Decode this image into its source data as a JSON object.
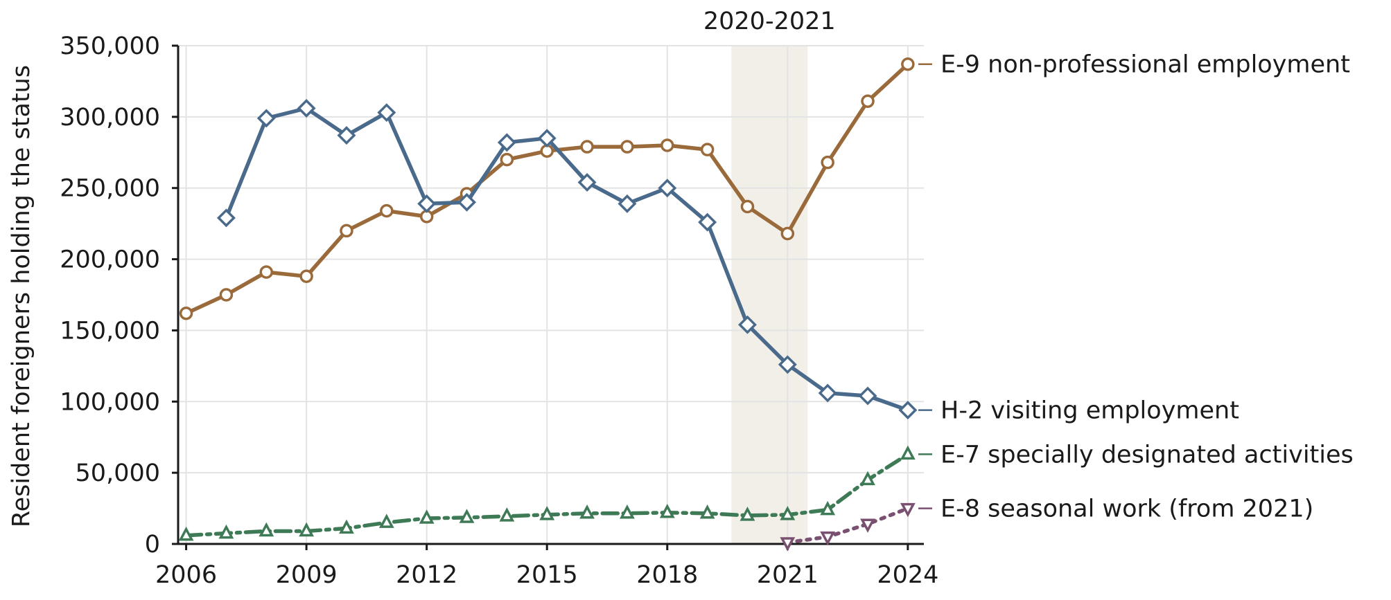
{
  "chart_data": {
    "type": "line",
    "title": "",
    "xlabel": "",
    "ylabel": "Resident foreigners holding the status",
    "xlim": [
      2005.8,
      2024.4
    ],
    "ylim": [
      0,
      350000
    ],
    "x_ticks": [
      "2006",
      "2009",
      "2012",
      "2015",
      "2018",
      "2021",
      "2024"
    ],
    "y_ticks": [
      "0",
      "50,000",
      "100,000",
      "150,000",
      "200,000",
      "250,000",
      "300,000",
      "350,000"
    ],
    "grid": true,
    "legend": "direct labels at right end of each line",
    "highlight_band": {
      "label": "2020-2021",
      "from": 2019.6,
      "to": 2021.5,
      "color": "#f2efe9"
    },
    "series": [
      {
        "name": "E-9 non-professional employment",
        "color": "#9a6a3a",
        "marker": "circle",
        "dash": "solid",
        "x": [
          2006,
          2007,
          2008,
          2009,
          2010,
          2011,
          2012,
          2013,
          2014,
          2015,
          2016,
          2017,
          2018,
          2019,
          2020,
          2021,
          2022,
          2023,
          2024
        ],
        "values": [
          162000,
          175000,
          191000,
          188000,
          220000,
          234000,
          230000,
          246000,
          270000,
          276000,
          279000,
          279000,
          280000,
          277000,
          237000,
          218000,
          268000,
          311000,
          337000
        ]
      },
      {
        "name": "H-2 visiting employment",
        "color": "#4a6a8c",
        "marker": "diamond",
        "dash": "solid",
        "x": [
          2007,
          2008,
          2009,
          2010,
          2011,
          2012,
          2013,
          2014,
          2015,
          2016,
          2017,
          2018,
          2019,
          2020,
          2021,
          2022,
          2023,
          2024
        ],
        "values": [
          229000,
          299000,
          306000,
          287000,
          303000,
          239000,
          240000,
          282000,
          285000,
          254000,
          239000,
          250000,
          226000,
          154000,
          126000,
          106000,
          104000,
          94000
        ]
      },
      {
        "name": "E-7 specially designated activities",
        "color": "#3f7a57",
        "marker": "triangle-up",
        "dash": "dashdot",
        "x": [
          2006,
          2007,
          2008,
          2009,
          2010,
          2011,
          2012,
          2013,
          2014,
          2015,
          2016,
          2017,
          2018,
          2019,
          2020,
          2021,
          2022,
          2023,
          2024
        ],
        "values": [
          6000,
          7500,
          9000,
          9000,
          11000,
          15000,
          18000,
          18500,
          19500,
          20500,
          21500,
          21500,
          22000,
          21500,
          20000,
          20500,
          24000,
          45000,
          63000
        ]
      },
      {
        "name": "E-8 seasonal work (from 2021)",
        "color": "#7a5070",
        "marker": "triangle-down",
        "dash": "dotted",
        "x": [
          2021,
          2022,
          2023,
          2024
        ],
        "values": [
          1000,
          5000,
          14000,
          25000
        ]
      }
    ]
  }
}
